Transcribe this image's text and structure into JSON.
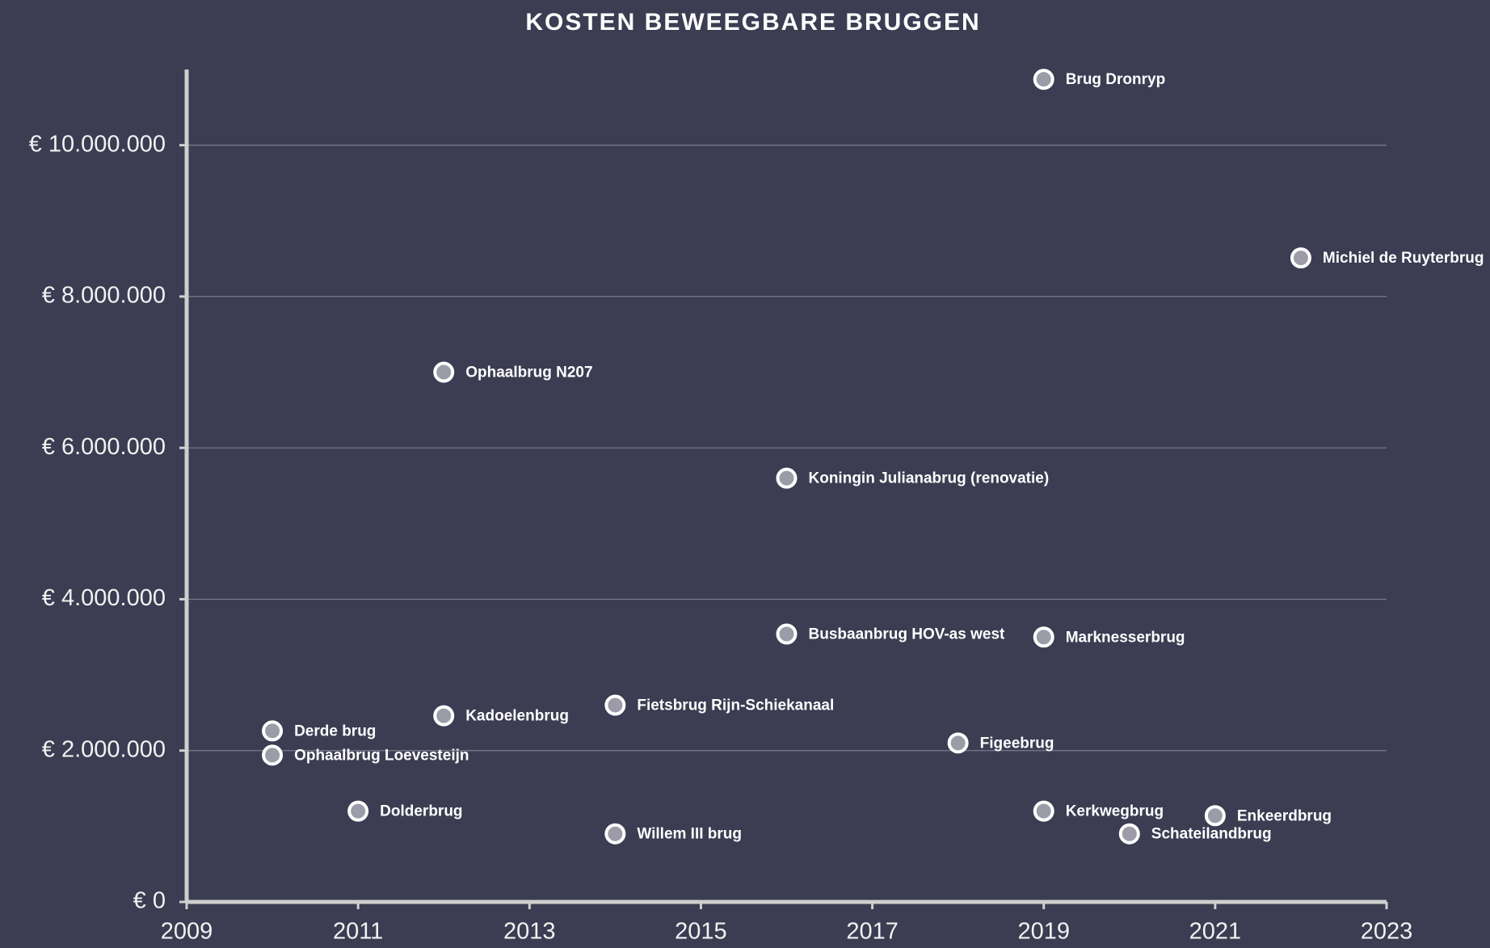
{
  "chart_data": {
    "type": "scatter",
    "title": "KOSTEN BEWEEGBARE BRUGGEN",
    "x": [
      2019,
      2022,
      2012,
      2016,
      2016,
      2019,
      2014,
      2012,
      2010,
      2010,
      2018,
      2011,
      2014,
      2019,
      2021,
      2020
    ],
    "values": [
      10870000,
      8510000,
      7000000,
      5600000,
      3540000,
      3500000,
      2600000,
      2460000,
      2260000,
      1940000,
      2100000,
      1200000,
      900000,
      1200000,
      1140000,
      900000
    ],
    "labels": [
      "Brug Dronryp",
      "Michiel de Ruyterbrug",
      "Ophaalbrug N207",
      "Koningin Julianabrug (renovatie)",
      "Busbaanbrug HOV-as west",
      "Marknesserbrug",
      "Fietsbrug Rijn-Schiekanaal",
      "Kadoelenbrug",
      "Derde brug",
      "Ophaalbrug Loevesteijn",
      "Figeebrug",
      "Dolderbrug",
      "Willem III brug",
      "Kerkwegbrug",
      "Enkeerdbrug",
      "Schateilandbrug"
    ],
    "color": "#9c9ca8",
    "xlim": [
      2009,
      2023
    ],
    "xticks": [
      2009,
      2011,
      2013,
      2015,
      2017,
      2019,
      2021,
      2023
    ],
    "ylim": [
      0,
      11000000
    ],
    "yticks": [
      {
        "value": 0,
        "label": "€ 0"
      },
      {
        "value": 2000000,
        "label": "€ 2.000.000"
      },
      {
        "value": 4000000,
        "label": "€ 4.000.000"
      },
      {
        "value": 6000000,
        "label": "€ 6.000.000"
      },
      {
        "value": 8000000,
        "label": "€ 8.000.000"
      },
      {
        "value": 10000000,
        "label": "€ 10.000.000"
      }
    ],
    "grid": true
  }
}
